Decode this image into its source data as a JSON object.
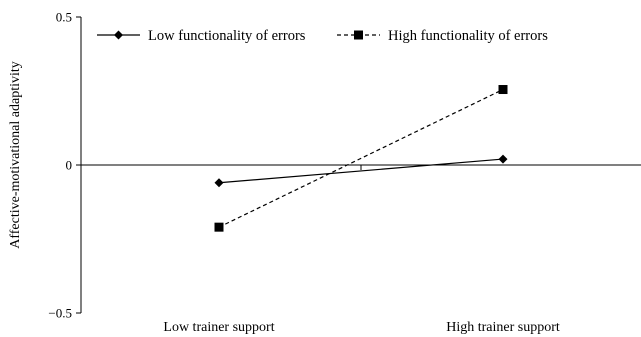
{
  "chart_data": {
    "type": "line",
    "title": "",
    "xlabel": "",
    "ylabel": "Affective-motivational adaptivity",
    "categories": [
      "Low trainer support",
      "High trainer support"
    ],
    "ylim": [
      -0.5,
      0.5
    ],
    "yticks": [
      {
        "value": 0.5,
        "label": "0.5"
      },
      {
        "value": 0,
        "label": "0"
      },
      {
        "value": -0.5,
        "label": "−0.5"
      }
    ],
    "grid": false,
    "legend_position": "top",
    "series": [
      {
        "name": "Low functionality of errors",
        "values": [
          -0.06,
          0.02
        ],
        "marker": "diamond",
        "line_style": "solid",
        "color": "#000000"
      },
      {
        "name": "High functionality of errors",
        "values": [
          -0.21,
          0.255
        ],
        "marker": "square",
        "line_style": "dashed",
        "color": "#000000"
      }
    ]
  }
}
